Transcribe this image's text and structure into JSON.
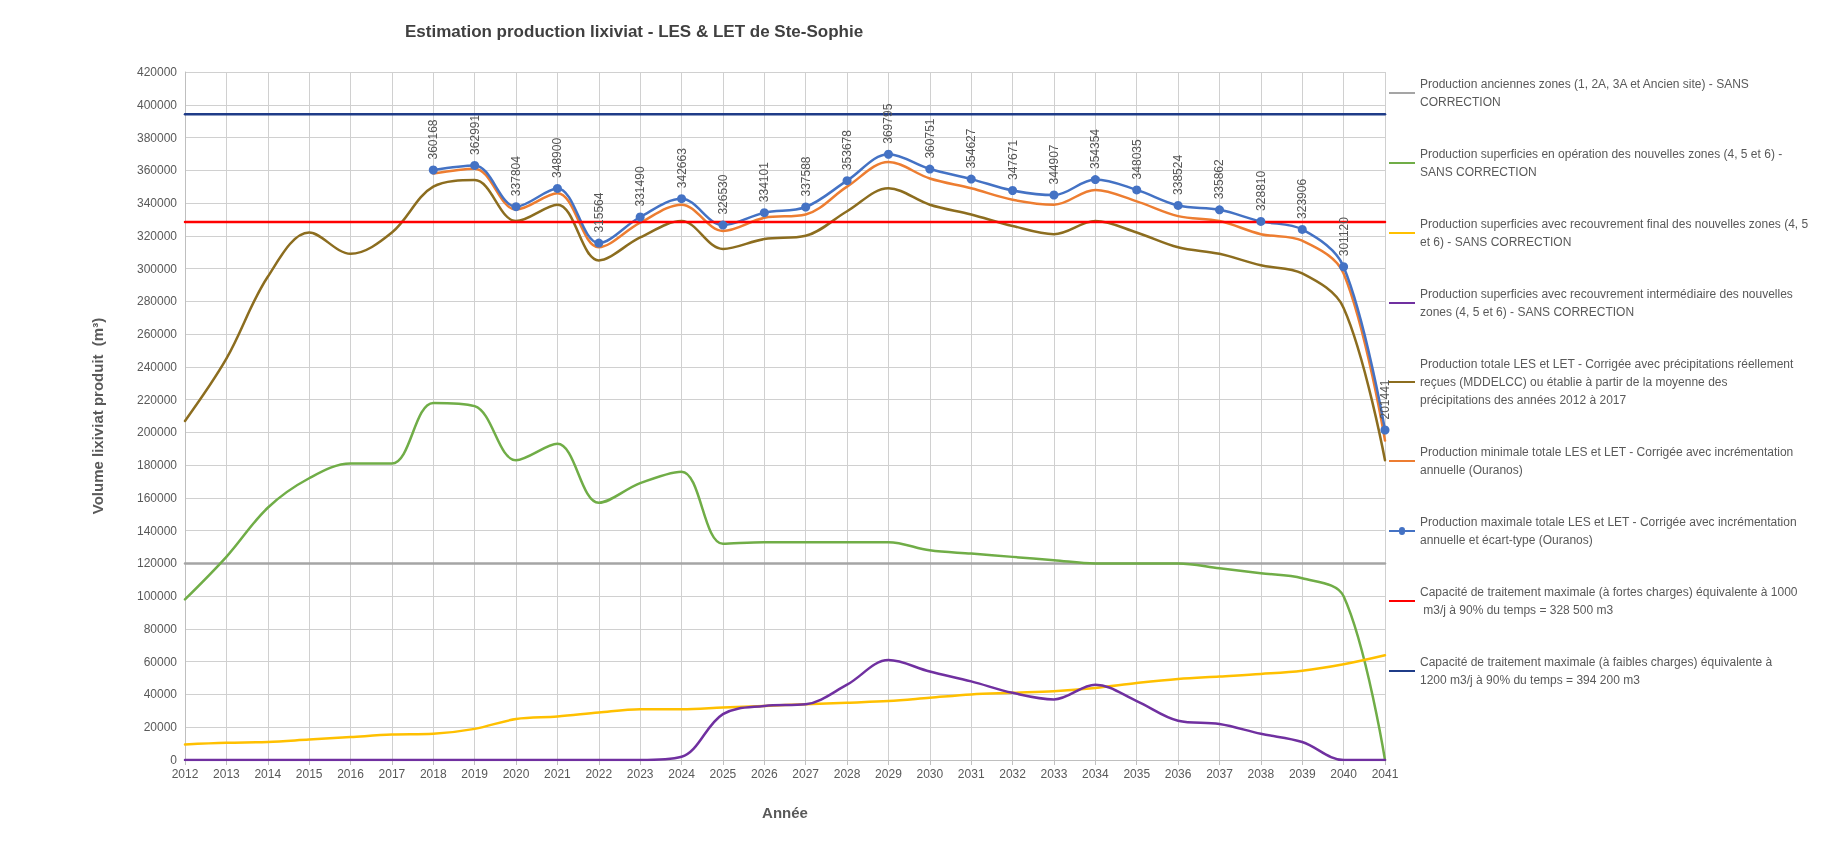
{
  "chart_data": {
    "type": "line",
    "title": "Estimation production lixiviat - LES & LET de Ste-Sophie",
    "xlabel": "Année",
    "ylabel": "Volume lixiviat produit  (m³)",
    "categories": [
      "2012",
      "2013",
      "2014",
      "2015",
      "2016",
      "2017",
      "2018",
      "2019",
      "2020",
      "2021",
      "2022",
      "2023",
      "2024",
      "2025",
      "2026",
      "2027",
      "2028",
      "2029",
      "2030",
      "2031",
      "2032",
      "2033",
      "2034",
      "2035",
      "2036",
      "2037",
      "2038",
      "2039",
      "2040",
      "2041"
    ],
    "ylim": [
      0,
      420000
    ],
    "yticks": [
      0,
      20000,
      40000,
      60000,
      80000,
      100000,
      120000,
      140000,
      160000,
      180000,
      200000,
      220000,
      240000,
      260000,
      280000,
      300000,
      320000,
      340000,
      360000,
      380000,
      400000,
      420000
    ],
    "grid": true,
    "legend": "right",
    "marker": "none",
    "line_style": "solid",
    "series": [
      {
        "name": "Production anciennes zones (1, 2A, 3A et Ancien site) - SANS CORRECTION",
        "color": "#a5a5a5",
        "values": [
          120000,
          120000,
          120000,
          120000,
          120000,
          120000,
          120000,
          120000,
          120000,
          120000,
          120000,
          120000,
          120000,
          120000,
          120000,
          120000,
          120000,
          120000,
          120000,
          120000,
          120000,
          120000,
          120000,
          120000,
          120000,
          120000,
          120000,
          120000,
          120000,
          120000
        ]
      },
      {
        "name": "Production superficies en opération des nouvelles zones (4, 5 et 6) - SANS CORRECTION",
        "color": "#70ad47",
        "values": [
          98000,
          124000,
          154000,
          172000,
          181000,
          181000,
          218000,
          216000,
          183000,
          193000,
          157000,
          169000,
          176000,
          132000,
          133000,
          133000,
          133000,
          133000,
          128000,
          126000,
          124000,
          122000,
          120000,
          120000,
          120000,
          117000,
          114000,
          111000,
          100000,
          0
        ]
      },
      {
        "name": "Production superficies avec recouvrement final des nouvelles zones (4, 5 et 6) - SANS CORRECTION",
        "color": "#ffc000",
        "values": [
          9500,
          10500,
          11000,
          12500,
          14000,
          15500,
          16000,
          19000,
          25000,
          26500,
          29000,
          31000,
          31000,
          32000,
          33000,
          34000,
          35000,
          36000,
          38000,
          40000,
          41000,
          42000,
          44000,
          47000,
          49500,
          51000,
          52500,
          54500,
          58500,
          64000
        ]
      },
      {
        "name": "Production superficies avec recouvrement intermédiaire des nouvelles zones (4, 5 et 6) - SANS CORRECTION",
        "color": "#7030a0",
        "values": [
          0,
          0,
          0,
          0,
          0,
          0,
          0,
          0,
          0,
          0,
          0,
          0,
          2000,
          28000,
          33000,
          34000,
          46000,
          61000,
          54000,
          48000,
          41000,
          37000,
          46000,
          36000,
          24000,
          22000,
          16000,
          11000,
          0,
          0
        ]
      },
      {
        "name": "Production totale LES et LET - Corrigée avec précipitations réellement reçues (MDDELCC) ou établie à partir de la moyenne des précipitations des années 2012 à 2017",
        "color": "#8c6d1f",
        "values": [
          207000,
          245000,
          295000,
          322000,
          309000,
          322000,
          350000,
          354000,
          329000,
          339000,
          305000,
          319000,
          329000,
          312000,
          318000,
          320000,
          335000,
          349000,
          339000,
          333000,
          326000,
          321000,
          329000,
          322000,
          313000,
          309000,
          302000,
          297000,
          276000,
          183000
        ]
      },
      {
        "name": "Production minimale totale LES et LET - Corrigée avec incrémentation annuelle (Ouranos)",
        "color": "#ed7d31",
        "values": [
          null,
          null,
          null,
          null,
          null,
          null,
          358000,
          361000,
          336000,
          346000,
          313000,
          328000,
          339000,
          323000,
          331000,
          333000,
          350000,
          365000,
          355000,
          349000,
          342000,
          339000,
          348000,
          341000,
          332000,
          329000,
          321000,
          317000,
          297000,
          195000
        ]
      },
      {
        "name": "Production maximale totale LES et LET - Corrigée avec incrémentation annuelle et écart-type (Ouranos)",
        "color": "#4472c4",
        "marker": "circle",
        "values": [
          null,
          null,
          null,
          null,
          null,
          null,
          360168,
          362991,
          337804,
          348900,
          315564,
          331490,
          342663,
          326530,
          334101,
          337588,
          353678,
          369795,
          360751,
          354627,
          347671,
          344907,
          354354,
          348035,
          338524,
          335862,
          328810,
          323906,
          301120,
          201441
        ],
        "value_labels": [
          null,
          null,
          null,
          null,
          null,
          null,
          "360168",
          "362991",
          "337804",
          "348900",
          "315564",
          "331490",
          "342663",
          "326530",
          "334101",
          "337588",
          "353678",
          "369795",
          "360751",
          "354627",
          "347671",
          "344907",
          "354354",
          "348035",
          "338524",
          "335862",
          "328810",
          "323906",
          "301120",
          "201441"
        ]
      },
      {
        "name": "Capacité de traitement maximale (à fortes charges) équivalente à 1000 m3/j à 90% du temps = 328 500 m3",
        "color": "#ff0000",
        "values": [
          328500,
          328500,
          328500,
          328500,
          328500,
          328500,
          328500,
          328500,
          328500,
          328500,
          328500,
          328500,
          328500,
          328500,
          328500,
          328500,
          328500,
          328500,
          328500,
          328500,
          328500,
          328500,
          328500,
          328500,
          328500,
          328500,
          328500,
          328500,
          328500,
          328500
        ]
      },
      {
        "name": "Capacité de traitement maximale (à faibles charges) équivalente à 1200 m3/j à 90% du temps = 394 200 m3",
        "color": "#1f3c88",
        "values": [
          394200,
          394200,
          394200,
          394200,
          394200,
          394200,
          394200,
          394200,
          394200,
          394200,
          394200,
          394200,
          394200,
          394200,
          394200,
          394200,
          394200,
          394200,
          394200,
          394200,
          394200,
          394200,
          394200,
          394200,
          394200,
          394200,
          394200,
          394200,
          394200,
          394200
        ]
      }
    ]
  }
}
